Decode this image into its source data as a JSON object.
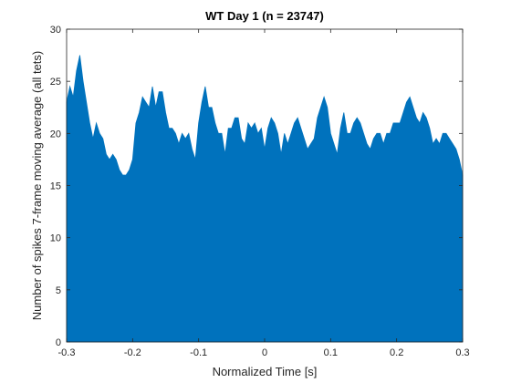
{
  "chart_data": {
    "type": "area",
    "title": "WT Day 1 (n = 23747)",
    "xlabel": "Normalized Time [s]",
    "ylabel": "Number of spikes 7-frame moving average (all tets)",
    "xlim": [
      -0.3,
      0.3
    ],
    "ylim": [
      0,
      30
    ],
    "xticks": [
      -0.3,
      -0.2,
      -0.1,
      0,
      0.1,
      0.2,
      0.3
    ],
    "xtick_labels": [
      "-0.3",
      "-0.2",
      "-0.1",
      "0",
      "0.1",
      "0.2",
      "0.3"
    ],
    "yticks": [
      0,
      5,
      10,
      15,
      20,
      25,
      30
    ],
    "ytick_labels": [
      "0",
      "5",
      "10",
      "15",
      "20",
      "25",
      "30"
    ],
    "grid": false,
    "box": true,
    "series": [
      {
        "color": "#0072BD",
        "x": [
          -0.3,
          -0.295,
          -0.29,
          -0.285,
          -0.28,
          -0.275,
          -0.27,
          -0.265,
          -0.26,
          -0.255,
          -0.25,
          -0.245,
          -0.24,
          -0.235,
          -0.23,
          -0.225,
          -0.22,
          -0.215,
          -0.21,
          -0.205,
          -0.2,
          -0.195,
          -0.19,
          -0.185,
          -0.18,
          -0.175,
          -0.17,
          -0.165,
          -0.16,
          -0.155,
          -0.15,
          -0.145,
          -0.14,
          -0.135,
          -0.13,
          -0.125,
          -0.12,
          -0.115,
          -0.11,
          -0.105,
          -0.1,
          -0.095,
          -0.09,
          -0.085,
          -0.08,
          -0.075,
          -0.07,
          -0.065,
          -0.06,
          -0.055,
          -0.05,
          -0.045,
          -0.04,
          -0.035,
          -0.03,
          -0.025,
          -0.02,
          -0.015,
          -0.01,
          -0.005,
          0,
          0.005,
          0.01,
          0.015,
          0.02,
          0.025,
          0.03,
          0.035,
          0.04,
          0.045,
          0.05,
          0.055,
          0.06,
          0.065,
          0.07,
          0.075,
          0.08,
          0.085,
          0.09,
          0.095,
          0.1,
          0.105,
          0.11,
          0.115,
          0.12,
          0.125,
          0.13,
          0.135,
          0.14,
          0.145,
          0.15,
          0.155,
          0.16,
          0.165,
          0.17,
          0.175,
          0.18,
          0.185,
          0.19,
          0.195,
          0.2,
          0.205,
          0.21,
          0.215,
          0.22,
          0.225,
          0.23,
          0.235,
          0.24,
          0.245,
          0.25,
          0.255,
          0.26,
          0.265,
          0.27,
          0.275,
          0.28,
          0.285,
          0.29,
          0.295,
          0.3
        ],
        "y": [
          23,
          24.5,
          23.5,
          26,
          27.5,
          25,
          23,
          21,
          19.5,
          21,
          20,
          19.5,
          18,
          17.5,
          18,
          17.5,
          16.5,
          16,
          16,
          16.5,
          17.5,
          21,
          22,
          23.5,
          23,
          22.5,
          24.5,
          22.5,
          24,
          24,
          22,
          20.5,
          20.5,
          20,
          19,
          20,
          19.5,
          20,
          18.5,
          17.5,
          21,
          23,
          24.5,
          22.5,
          22.5,
          21,
          20,
          20,
          18,
          20.5,
          20.5,
          21.5,
          21.5,
          19.5,
          19,
          21,
          20.5,
          21,
          20,
          20.5,
          18.5,
          20.5,
          21.5,
          21,
          20,
          18,
          20,
          19,
          20,
          21,
          21.5,
          20.5,
          19.5,
          18.5,
          19,
          19.5,
          21.5,
          22.5,
          23.5,
          22.5,
          20,
          19,
          18,
          20.5,
          22,
          20,
          20,
          21,
          21.5,
          21,
          20,
          19,
          18.5,
          19.5,
          20,
          20,
          19,
          20,
          20,
          21,
          21,
          21,
          22,
          23,
          23.5,
          22.5,
          21.5,
          21,
          22,
          21.5,
          20.5,
          19,
          19.5,
          19,
          20,
          20,
          19.5,
          19,
          18.5,
          17.5,
          16
        ]
      }
    ]
  }
}
